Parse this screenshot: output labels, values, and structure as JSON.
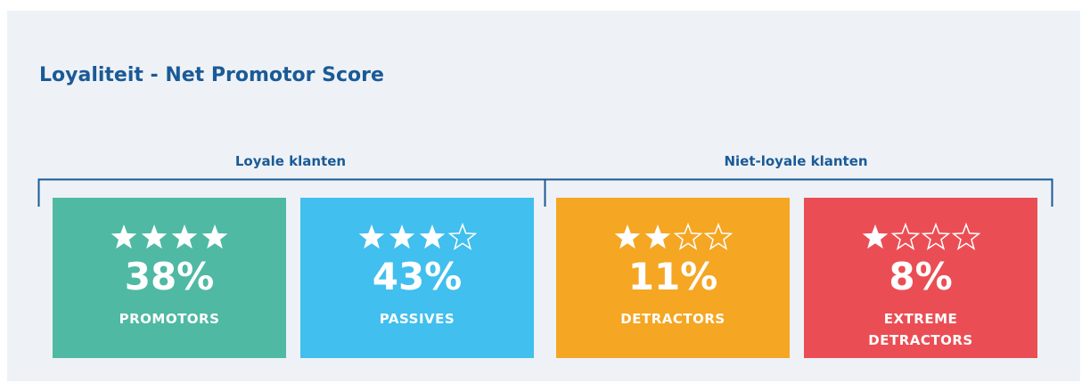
{
  "title": "Loyaliteit - Net Promotor Score",
  "star_scale": 4,
  "groups": [
    {
      "label": "Loyale klanten"
    },
    {
      "label": "Niet-loyale klanten"
    }
  ],
  "cards": [
    {
      "stars": 4,
      "value": "38%",
      "label": "PROMOTORS",
      "color": "#4fb9a3"
    },
    {
      "stars": 3,
      "value": "43%",
      "label": "PASSIVES",
      "color": "#41bfee"
    },
    {
      "stars": 2,
      "value": "11%",
      "label": "DETRACTORS",
      "color": "#f5a623"
    },
    {
      "stars": 1,
      "value": "8%",
      "label": "EXTREME DETRACTORS",
      "color": "#ea4e54"
    }
  ]
}
